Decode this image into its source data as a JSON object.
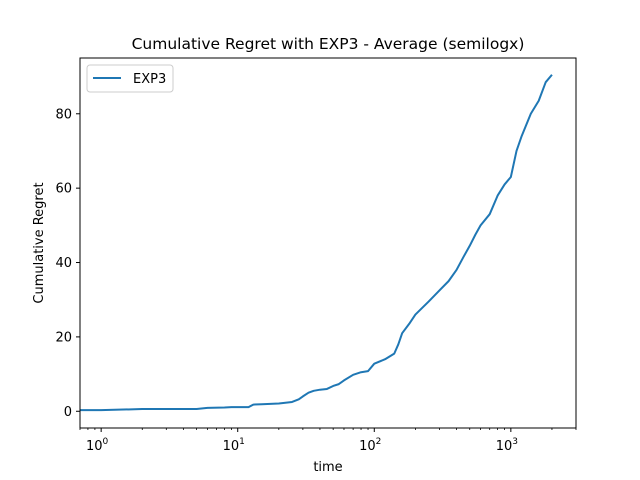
{
  "chart_data": {
    "type": "line",
    "title": "Cumulative Regret with EXP3 - Average (semilogx)",
    "xlabel": "time",
    "ylabel": "Cumulative Regret",
    "xscale": "log",
    "xlim": [
      0.7,
      3000
    ],
    "ylim": [
      -4.5,
      95
    ],
    "grid": false,
    "legend_position": "top-left",
    "x_ticks": [
      {
        "value": 1,
        "base": "10",
        "exp": "0"
      },
      {
        "value": 10,
        "base": "10",
        "exp": "1"
      },
      {
        "value": 100,
        "base": "10",
        "exp": "2"
      },
      {
        "value": 1000,
        "base": "10",
        "exp": "3"
      }
    ],
    "y_ticks": [
      {
        "value": 0,
        "label": "0"
      },
      {
        "value": 20,
        "label": "20"
      },
      {
        "value": 40,
        "label": "40"
      },
      {
        "value": 60,
        "label": "60"
      },
      {
        "value": 80,
        "label": "80"
      }
    ],
    "series": [
      {
        "name": "EXP3",
        "color": "#1f77b4",
        "x": [
          0.7,
          1,
          2,
          3,
          5,
          6,
          8,
          9,
          12,
          13,
          15,
          20,
          25,
          28,
          30,
          33,
          36,
          40,
          45,
          50,
          55,
          60,
          70,
          80,
          90,
          100,
          120,
          140,
          150,
          160,
          180,
          200,
          250,
          300,
          350,
          400,
          450,
          500,
          550,
          600,
          700,
          800,
          900,
          1000,
          1100,
          1200,
          1400,
          1600,
          1800,
          2000
        ],
        "y": [
          0.3,
          0.3,
          0.6,
          0.6,
          0.6,
          0.9,
          1.0,
          1.1,
          1.1,
          1.8,
          1.9,
          2.1,
          2.5,
          3.2,
          4.0,
          5.0,
          5.5,
          5.8,
          6.0,
          6.8,
          7.3,
          8.3,
          9.8,
          10.5,
          10.8,
          12.8,
          14.0,
          15.5,
          18.0,
          21.0,
          23.5,
          26.0,
          29.5,
          32.5,
          35.0,
          38.0,
          41.5,
          44.5,
          47.5,
          50.0,
          53.0,
          58.0,
          61.0,
          63.0,
          70.0,
          74.0,
          80.0,
          83.5,
          88.5,
          90.5
        ]
      }
    ]
  }
}
